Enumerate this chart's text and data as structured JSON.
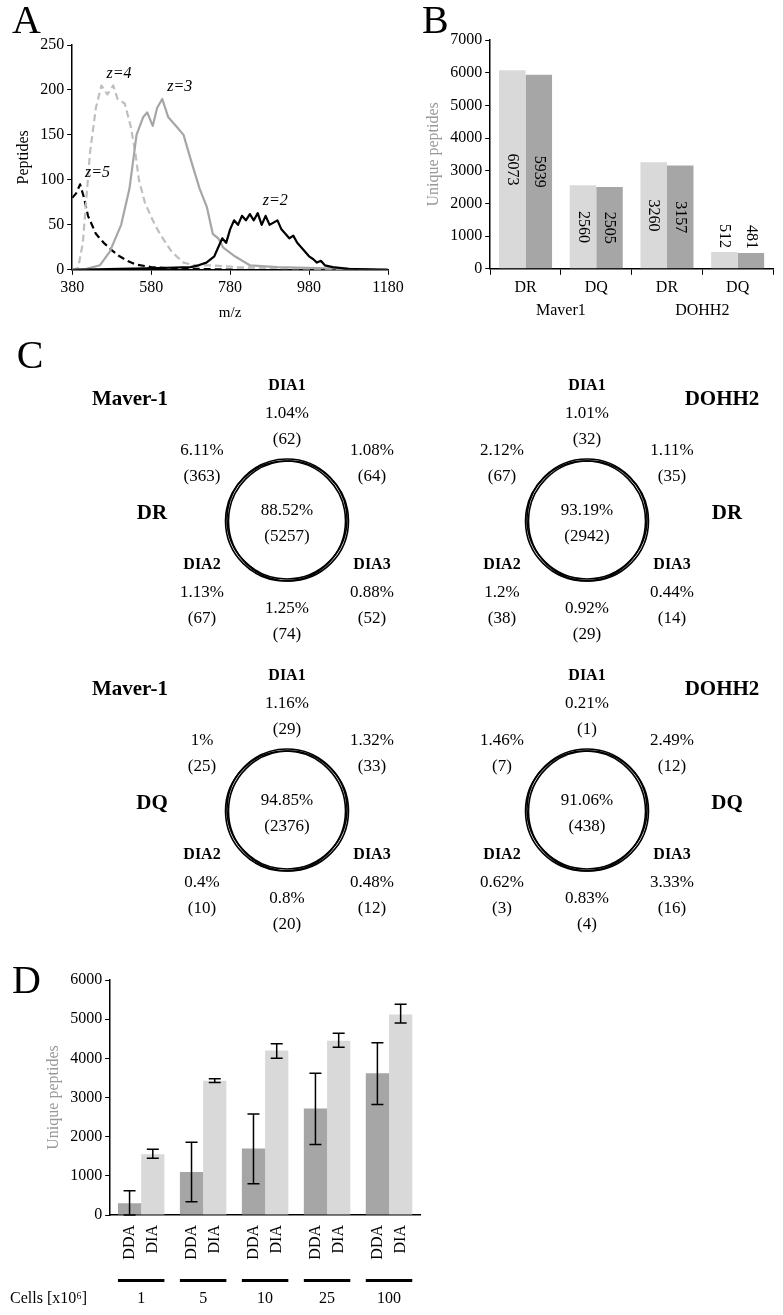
{
  "chart_data": [
    {
      "type": "line",
      "title": "A",
      "xlabel": "m/z",
      "ylabel": "Peptides",
      "xlim": [
        380,
        1180
      ],
      "xticks": [
        380,
        580,
        780,
        980,
        1180
      ],
      "ylim": [
        0,
        250
      ],
      "yticks": [
        0,
        50,
        100,
        150,
        200,
        250
      ],
      "marker": "none",
      "legend": false,
      "grid": false,
      "series": [
        {
          "name": "z=2",
          "color": "#000000",
          "line_style": "solid",
          "x": [
            380,
            500,
            600,
            680,
            700,
            720,
            740,
            760,
            770,
            780,
            790,
            800,
            810,
            820,
            830,
            840,
            850,
            860,
            870,
            880,
            900,
            910,
            920,
            930,
            940,
            950,
            960,
            970,
            980,
            990,
            1000,
            1010,
            1020,
            1040,
            1080,
            1180
          ],
          "values": [
            0,
            1,
            2,
            3,
            5,
            8,
            15,
            35,
            30,
            45,
            55,
            50,
            60,
            55,
            62,
            55,
            63,
            50,
            60,
            50,
            55,
            45,
            40,
            35,
            38,
            30,
            25,
            20,
            15,
            12,
            8,
            10,
            5,
            3,
            1,
            0
          ]
        },
        {
          "name": "z=3",
          "color": "#a6a6a6",
          "line_style": "solid",
          "x": [
            380,
            416,
            450,
            475,
            504,
            525,
            543,
            560,
            570,
            584,
            595,
            608,
            623,
            643,
            662,
            682,
            703,
            721,
            736,
            750,
            762,
            792,
            830,
            900,
            1000,
            1180
          ],
          "values": [
            0,
            1,
            5,
            20,
            50,
            90,
            150,
            170,
            175,
            160,
            180,
            190,
            170,
            160,
            150,
            120,
            90,
            70,
            40,
            35,
            25,
            15,
            5,
            3,
            2,
            0
          ]
        },
        {
          "name": "z=4",
          "color": "#bfbfbf",
          "line_style": "dashed",
          "x": [
            380,
            395,
            407,
            425,
            440,
            454,
            469,
            484,
            495,
            513,
            528,
            540,
            549,
            564,
            584,
            602,
            632,
            662,
            691,
            733,
            800,
            900,
            1000,
            1180
          ],
          "values": [
            0,
            2,
            30,
            130,
            180,
            205,
            195,
            205,
            190,
            185,
            160,
            130,
            100,
            75,
            55,
            40,
            20,
            8,
            5,
            5,
            3,
            2,
            1,
            0
          ]
        },
        {
          "name": "z=5",
          "color": "#000000",
          "line_style": "dashed",
          "x": [
            380,
            390,
            400,
            410,
            420,
            440,
            460,
            480,
            500,
            520,
            540,
            580,
            620,
            700,
            800,
            1000,
            1180
          ],
          "values": [
            80,
            85,
            95,
            80,
            60,
            40,
            30,
            22,
            15,
            10,
            6,
            3,
            2,
            1,
            0,
            0,
            0
          ]
        }
      ]
    },
    {
      "type": "bar",
      "title": "B",
      "ylabel": "Unique peptides",
      "categories": [
        "DR",
        "DQ",
        "DR",
        "DQ"
      ],
      "ylim": [
        0,
        7000
      ],
      "yticks": [
        0,
        1000,
        2000,
        3000,
        4000,
        5000,
        6000,
        7000
      ],
      "data_labels": true,
      "legend": false,
      "grid": false,
      "annotations": [
        "Maver1",
        "DOHH2"
      ],
      "series": [
        {
          "color": "#d9d9d9",
          "values": [
            6073,
            2560,
            3260,
            512
          ]
        },
        {
          "color": "#a6a6a6",
          "values": [
            5939,
            2505,
            3157,
            481
          ]
        }
      ]
    },
    {
      "type": "other",
      "title": "Maver-1",
      "subtitle": "DR",
      "categories": [
        "DIA1",
        "DIA2",
        "DIA3"
      ],
      "annotations": [
        "1.04%\n(62)",
        "1.08%\n(64)",
        "0.88%\n(52)",
        "1.25%\n(74)",
        "1.13%\n(67)",
        "6.11%\n(363)",
        "88.52%\n(5257)",
        "C"
      ]
    },
    {
      "type": "other",
      "title": "DOHH2",
      "subtitle": "DR",
      "categories": [
        "DIA1",
        "DIA2",
        "DIA3"
      ],
      "annotations": [
        "1.01%\n(32)",
        "1.11%\n(35)",
        "0.44%\n(14)",
        "0.92%\n(29)",
        "1.2%\n(38)",
        "2.12%\n(67)",
        "93.19%\n(2942)"
      ]
    },
    {
      "type": "other",
      "title": "Maver-1",
      "subtitle": "DQ",
      "categories": [
        "DIA1",
        "DIA2",
        "DIA3"
      ],
      "annotations": [
        "1.16%\n(29)",
        "1.32%\n(33)",
        "0.48%\n(12)",
        "0.8%\n(20)",
        "0.4%\n(10)",
        "1%\n(25)",
        "94.85%\n(2376)"
      ]
    },
    {
      "type": "other",
      "title": "DOHH2",
      "subtitle": "DQ",
      "categories": [
        "DIA1",
        "DIA2",
        "DIA3"
      ],
      "annotations": [
        "0.21%\n(1)",
        "2.49%\n(12)",
        "3.33%\n(16)",
        "0.83%\n(4)",
        "0.62%\n(3)",
        "1.46%\n(7)",
        "91.06%\n(438)"
      ]
    },
    {
      "type": "bar",
      "title": "D",
      "ylabel": "Unique peptides",
      "xlabel": "Cells [x10⁶]",
      "categories": [
        "1",
        "5",
        "10",
        "25",
        "100"
      ],
      "ylim": [
        0,
        6000
      ],
      "yticks": [
        0,
        1000,
        2000,
        3000,
        4000,
        5000,
        6000
      ],
      "legend": false,
      "grid": false,
      "series": [
        {
          "name": "DDA",
          "color": "#a6a6a6",
          "values": [
            300,
            1100,
            1700,
            2720,
            3620
          ],
          "errors": [
            [
              0,
              620
            ],
            [
              340,
              1860
            ],
            [
              800,
              2580
            ],
            [
              1800,
              3620
            ],
            [
              2820,
              4400
            ]
          ]
        },
        {
          "name": "DIA",
          "color": "#d9d9d9",
          "values": [
            1550,
            3430,
            4200,
            4450,
            5120
          ],
          "errors": [
            [
              1450,
              1680
            ],
            [
              3380,
              3480
            ],
            [
              4000,
              4370
            ],
            [
              4280,
              4640
            ],
            [
              4900,
              5380
            ]
          ]
        }
      ]
    }
  ]
}
